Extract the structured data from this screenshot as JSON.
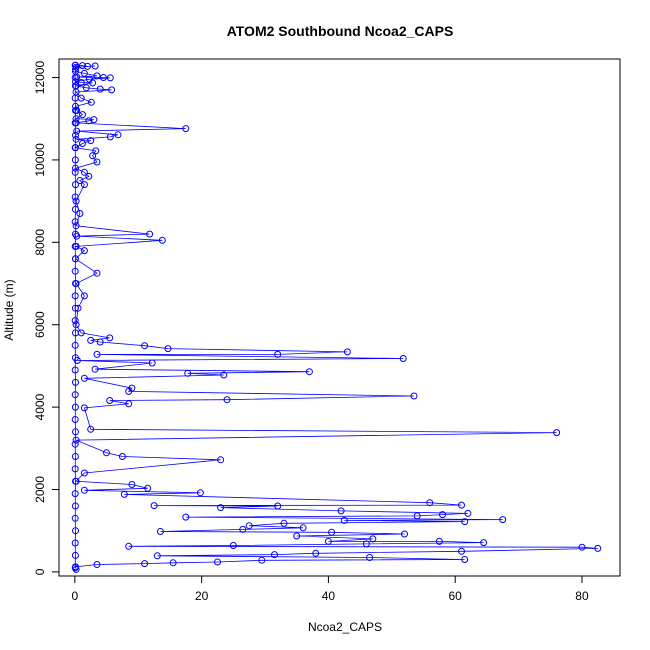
{
  "chart_data": {
    "type": "scatter",
    "title": "ATOM2 Southbound Ncoa2_CAPS",
    "xlabel": "Ncoa2_CAPS",
    "ylabel": "Altitude (m)",
    "xlim": [
      -2.5,
      86
    ],
    "ylim": [
      -100,
      12450
    ],
    "xticks": [
      0,
      20,
      40,
      60,
      80
    ],
    "yticks": [
      0,
      2000,
      4000,
      6000,
      8000,
      10000,
      12000
    ],
    "grid": false,
    "legend": "none",
    "connected": true,
    "color": "#0000ff",
    "series": [
      {
        "points": [
          [
            0.1,
            12300
          ],
          [
            1.2,
            12290
          ],
          [
            2.0,
            12270
          ],
          [
            3.2,
            12280
          ],
          [
            0.2,
            12250
          ],
          [
            0.1,
            12150
          ],
          [
            1.5,
            12100
          ],
          [
            3.5,
            12040
          ],
          [
            0.3,
            12010
          ],
          [
            4.5,
            12000
          ],
          [
            5.6,
            11990
          ],
          [
            2.3,
            11960
          ],
          [
            0.1,
            11900
          ],
          [
            1.0,
            11880
          ],
          [
            2.8,
            11870
          ],
          [
            0.2,
            11800
          ],
          [
            1.8,
            11750
          ],
          [
            4.0,
            11720
          ],
          [
            5.8,
            11700
          ],
          [
            0.2,
            11650
          ],
          [
            1.0,
            11500
          ],
          [
            2.6,
            11400
          ],
          [
            0.1,
            11300
          ],
          [
            0.3,
            11200
          ],
          [
            1.2,
            11100
          ],
          [
            0.2,
            11000
          ],
          [
            3.0,
            10980
          ],
          [
            2.2,
            10950
          ],
          [
            0.2,
            10900
          ],
          [
            17.5,
            10760
          ],
          [
            0.3,
            10700
          ],
          [
            6.8,
            10610
          ],
          [
            5.6,
            10560
          ],
          [
            0.2,
            10500
          ],
          [
            2.5,
            10470
          ],
          [
            1.2,
            10400
          ],
          [
            0.1,
            10300
          ],
          [
            3.3,
            10220
          ],
          [
            2.8,
            10100
          ],
          [
            3.5,
            9950
          ],
          [
            0.1,
            9800
          ],
          [
            1.5,
            9700
          ],
          [
            2.2,
            9600
          ],
          [
            0.8,
            9500
          ],
          [
            1.5,
            9400
          ],
          [
            0.2,
            9000
          ],
          [
            0.8,
            8700
          ],
          [
            0.2,
            8400
          ],
          [
            11.8,
            8200
          ],
          [
            0.3,
            8150
          ],
          [
            13.8,
            8050
          ],
          [
            0.2,
            7900
          ],
          [
            1.5,
            7800
          ],
          [
            0.1,
            7600
          ],
          [
            3.5,
            7250
          ],
          [
            0.2,
            7000
          ],
          [
            1.5,
            6700
          ],
          [
            0.5,
            6400
          ],
          [
            0.2,
            6000
          ],
          [
            1.0,
            5800
          ],
          [
            5.5,
            5680
          ],
          [
            2.5,
            5620
          ],
          [
            4.0,
            5580
          ],
          [
            11.0,
            5490
          ],
          [
            14.7,
            5420
          ],
          [
            43.0,
            5340
          ],
          [
            32.0,
            5280
          ],
          [
            3.5,
            5280
          ],
          [
            51.8,
            5180
          ],
          [
            0.4,
            5130
          ],
          [
            12.2,
            5070
          ],
          [
            3.2,
            4920
          ],
          [
            37.0,
            4860
          ],
          [
            17.8,
            4820
          ],
          [
            23.5,
            4780
          ],
          [
            1.5,
            4700
          ],
          [
            9.0,
            4460
          ],
          [
            8.5,
            4380
          ],
          [
            53.5,
            4270
          ],
          [
            24.0,
            4180
          ],
          [
            5.5,
            4160
          ],
          [
            8.5,
            4080
          ],
          [
            1.5,
            3980
          ],
          [
            2.5,
            3460
          ],
          [
            76.0,
            3380
          ],
          [
            0.2,
            3200
          ],
          [
            5.0,
            2890
          ],
          [
            7.5,
            2800
          ],
          [
            23.0,
            2720
          ],
          [
            1.5,
            2400
          ],
          [
            0.2,
            2200
          ],
          [
            9.0,
            2120
          ],
          [
            11.5,
            2030
          ],
          [
            1.5,
            1980
          ],
          [
            19.8,
            1920
          ],
          [
            7.8,
            1880
          ],
          [
            56.0,
            1680
          ],
          [
            61.0,
            1620
          ],
          [
            12.5,
            1610
          ],
          [
            32.0,
            1600
          ],
          [
            23.0,
            1560
          ],
          [
            42.0,
            1480
          ],
          [
            62.0,
            1420
          ],
          [
            58.0,
            1390
          ],
          [
            54.0,
            1360
          ],
          [
            17.5,
            1330
          ],
          [
            67.5,
            1270
          ],
          [
            42.5,
            1250
          ],
          [
            61.5,
            1220
          ],
          [
            33.0,
            1180
          ],
          [
            27.5,
            1120
          ],
          [
            36.0,
            1070
          ],
          [
            26.5,
            1030
          ],
          [
            13.5,
            980
          ],
          [
            40.5,
            960
          ],
          [
            52.0,
            920
          ],
          [
            35.0,
            870
          ],
          [
            47.0,
            800
          ],
          [
            40.0,
            740
          ],
          [
            57.5,
            740
          ],
          [
            64.5,
            710
          ],
          [
            46.0,
            680
          ],
          [
            25.0,
            640
          ],
          [
            8.5,
            620
          ],
          [
            80.0,
            600
          ],
          [
            82.5,
            570
          ],
          [
            61.0,
            500
          ],
          [
            38.0,
            450
          ],
          [
            31.5,
            420
          ],
          [
            13.0,
            390
          ],
          [
            46.5,
            350
          ],
          [
            61.5,
            300
          ],
          [
            29.5,
            280
          ],
          [
            22.5,
            240
          ],
          [
            15.5,
            220
          ],
          [
            11.0,
            200
          ],
          [
            3.5,
            180
          ],
          [
            0.1,
            120
          ],
          [
            0.2,
            60
          ]
        ]
      },
      {
        "points": [
          [
            0.05,
            12300
          ],
          [
            0.1,
            12200
          ],
          [
            0.05,
            12000
          ],
          [
            0.08,
            11800
          ],
          [
            0.05,
            11500
          ],
          [
            0.1,
            11200
          ],
          [
            0.05,
            10900
          ],
          [
            0.1,
            10600
          ],
          [
            0.05,
            10300
          ],
          [
            0.08,
            10000
          ],
          [
            0.05,
            9700
          ],
          [
            0.1,
            9400
          ],
          [
            0.05,
            9100
          ],
          [
            0.08,
            8800
          ],
          [
            0.05,
            8500
          ],
          [
            0.1,
            8200
          ],
          [
            0.05,
            7900
          ],
          [
            0.08,
            7600
          ],
          [
            0.05,
            7300
          ],
          [
            0.1,
            7000
          ],
          [
            0.05,
            6700
          ],
          [
            0.08,
            6400
          ],
          [
            0.05,
            6100
          ],
          [
            0.1,
            5800
          ],
          [
            0.05,
            5500
          ],
          [
            0.08,
            5200
          ],
          [
            0.05,
            4900
          ],
          [
            0.1,
            4600
          ],
          [
            0.05,
            4300
          ],
          [
            0.08,
            4000
          ],
          [
            0.05,
            3700
          ],
          [
            0.1,
            3400
          ],
          [
            0.05,
            3100
          ],
          [
            0.08,
            2800
          ],
          [
            0.05,
            2500
          ],
          [
            0.1,
            2200
          ],
          [
            0.05,
            1900
          ],
          [
            0.08,
            1600
          ],
          [
            0.05,
            1300
          ],
          [
            0.1,
            1000
          ],
          [
            0.05,
            700
          ],
          [
            0.08,
            400
          ],
          [
            0.05,
            100
          ]
        ]
      }
    ]
  }
}
